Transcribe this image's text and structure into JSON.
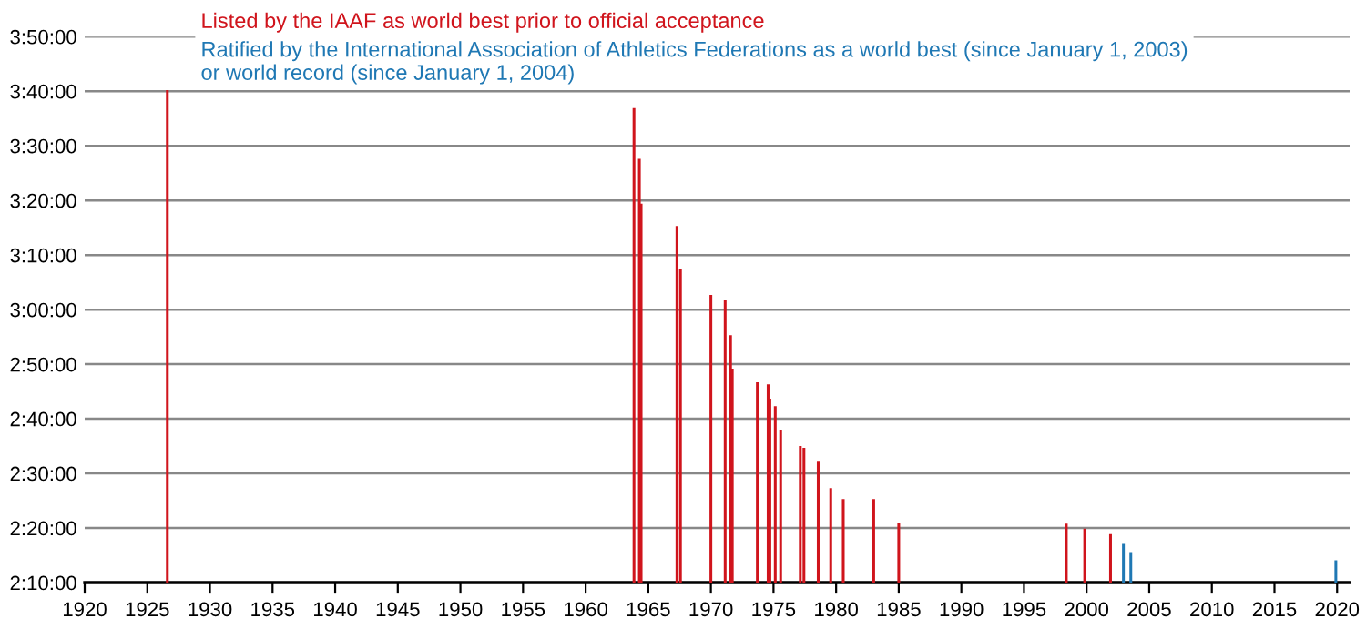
{
  "chart_data": {
    "type": "bar",
    "series": [
      {
        "name": "Listed by the IAAF as world best prior to official acceptance",
        "color": "#d0141c",
        "x": [
          1926.6,
          1963.86,
          1964.29,
          1964.43,
          1967.29,
          1967.57,
          1970.0,
          1971.14,
          1971.57,
          1971.71,
          1973.71,
          1974.57,
          1974.71,
          1975.14,
          1975.57,
          1977.14,
          1977.43,
          1978.57,
          1979.57,
          1980.57,
          1983.0,
          1985.0,
          1998.38,
          1999.85,
          2001.91
        ],
        "values": [
          220.2,
          216.9,
          207.6,
          199.4,
          195.3,
          187.4,
          182.7,
          181.7,
          175.3,
          169.2,
          166.7,
          166.3,
          163.7,
          162.3,
          158.0,
          155.0,
          154.7,
          152.3,
          147.3,
          145.3,
          145.3,
          141.0,
          140.8,
          139.9,
          138.9
        ]
      },
      {
        "name": "Ratified by the International Association of Athletics Federations as a world best (since January 1, 2003)\nor world record (since January 1, 2004)",
        "color": "#1f78b4",
        "x": [
          2002.94,
          2003.53,
          2019.9
        ],
        "values": [
          137.1,
          135.6,
          134.1
        ]
      }
    ],
    "xlim": [
      1920,
      2021
    ],
    "xticks": [
      1920,
      1925,
      1930,
      1935,
      1940,
      1945,
      1950,
      1955,
      1960,
      1965,
      1970,
      1975,
      1980,
      1985,
      1990,
      1995,
      2000,
      2005,
      2010,
      2015,
      2020
    ],
    "ylim": [
      130,
      230
    ],
    "yticks": [
      {
        "value": 130,
        "label": "2:10:00"
      },
      {
        "value": 140,
        "label": "2:20:00"
      },
      {
        "value": 150,
        "label": "2:30:00"
      },
      {
        "value": 160,
        "label": "2:40:00"
      },
      {
        "value": 170,
        "label": "2:50:00"
      },
      {
        "value": 180,
        "label": "3:00:00"
      },
      {
        "value": 190,
        "label": "3:10:00"
      },
      {
        "value": 200,
        "label": "3:20:00"
      },
      {
        "value": 210,
        "label": "3:30:00"
      },
      {
        "value": 220,
        "label": "3:40:00"
      },
      {
        "value": 230,
        "label": "3:50:00"
      }
    ],
    "grid": "y",
    "legend": "top left"
  }
}
